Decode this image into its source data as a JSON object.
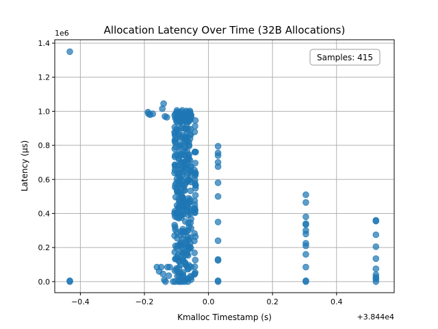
{
  "chart_data": {
    "type": "scatter",
    "title": "Allocation Latency Over Time (32B Allocations)",
    "xlabel": "Kmalloc Timestamp (s)",
    "ylabel": "Latency (µs)",
    "x_offset_label": "+3.844e4",
    "y_scale_label": "1e6",
    "xlim": [
      38439.52,
      38440.58
    ],
    "ylim": [
      -65000,
      1420000
    ],
    "x_ticks": [
      -0.4,
      -0.2,
      0.0,
      0.2,
      0.4
    ],
    "x_tick_labels": [
      "−0.4",
      "−0.2",
      "0.0",
      "0.2",
      "0.4"
    ],
    "y_ticks": [
      0,
      200000,
      400000,
      600000,
      800000,
      1000000,
      1200000,
      1400000
    ],
    "y_tick_labels": [
      "0.0",
      "0.2",
      "0.4",
      "0.6",
      "0.8",
      "1.0",
      "1.2",
      "1.4"
    ],
    "grid": true,
    "annotation": "Samples: 415",
    "annotation_position": "top-right",
    "point_color": "#1f77b4",
    "series": [
      {
        "points": [
          [
            38439.567,
            1350000
          ],
          [
            38439.567,
            5000
          ],
          [
            38439.567,
            0
          ],
          [
            38439.811,
            995000
          ],
          [
            38439.813,
            985000
          ],
          [
            38439.818,
            980000
          ],
          [
            38439.826,
            985000
          ],
          [
            38439.86,
            1045000
          ],
          [
            38439.856,
            1015000
          ],
          [
            38439.864,
            970000
          ],
          [
            38439.87,
            965000
          ],
          [
            38439.839,
            85000
          ],
          [
            38439.846,
            60000
          ],
          [
            38439.852,
            85000
          ],
          [
            38439.858,
            45000
          ],
          [
            38439.862,
            10000
          ],
          [
            38439.866,
            0
          ],
          [
            38439.872,
            85000
          ],
          [
            38439.876,
            35000
          ],
          [
            38439.879,
            85000
          ],
          [
            38439.89,
            0
          ],
          [
            38439.896,
            0
          ],
          [
            38439.906,
            0
          ],
          [
            38439.912,
            0
          ],
          [
            38439.918,
            0
          ],
          [
            38439.926,
            0
          ],
          [
            38439.936,
            0
          ],
          [
            38440.03,
            795000
          ],
          [
            38440.03,
            755000
          ],
          [
            38440.03,
            740000
          ],
          [
            38440.03,
            700000
          ],
          [
            38440.03,
            675000
          ],
          [
            38440.03,
            580000
          ],
          [
            38440.03,
            500000
          ],
          [
            38440.03,
            350000
          ],
          [
            38440.03,
            240000
          ],
          [
            38440.03,
            130000
          ],
          [
            38440.03,
            125000
          ],
          [
            38440.03,
            5000
          ],
          [
            38440.03,
            0
          ],
          [
            38440.304,
            510000
          ],
          [
            38440.304,
            465000
          ],
          [
            38440.304,
            380000
          ],
          [
            38440.304,
            340000
          ],
          [
            38440.304,
            335000
          ],
          [
            38440.304,
            300000
          ],
          [
            38440.304,
            280000
          ],
          [
            38440.304,
            225000
          ],
          [
            38440.304,
            210000
          ],
          [
            38440.304,
            160000
          ],
          [
            38440.304,
            85000
          ],
          [
            38440.304,
            5000
          ],
          [
            38440.304,
            0
          ],
          [
            38440.523,
            360000
          ],
          [
            38440.523,
            355000
          ],
          [
            38440.523,
            275000
          ],
          [
            38440.523,
            205000
          ],
          [
            38440.523,
            135000
          ],
          [
            38440.523,
            75000
          ],
          [
            38440.523,
            40000
          ],
          [
            38440.523,
            25000
          ],
          [
            38440.523,
            15000
          ],
          [
            38440.523,
            0
          ]
        ]
      }
    ]
  }
}
